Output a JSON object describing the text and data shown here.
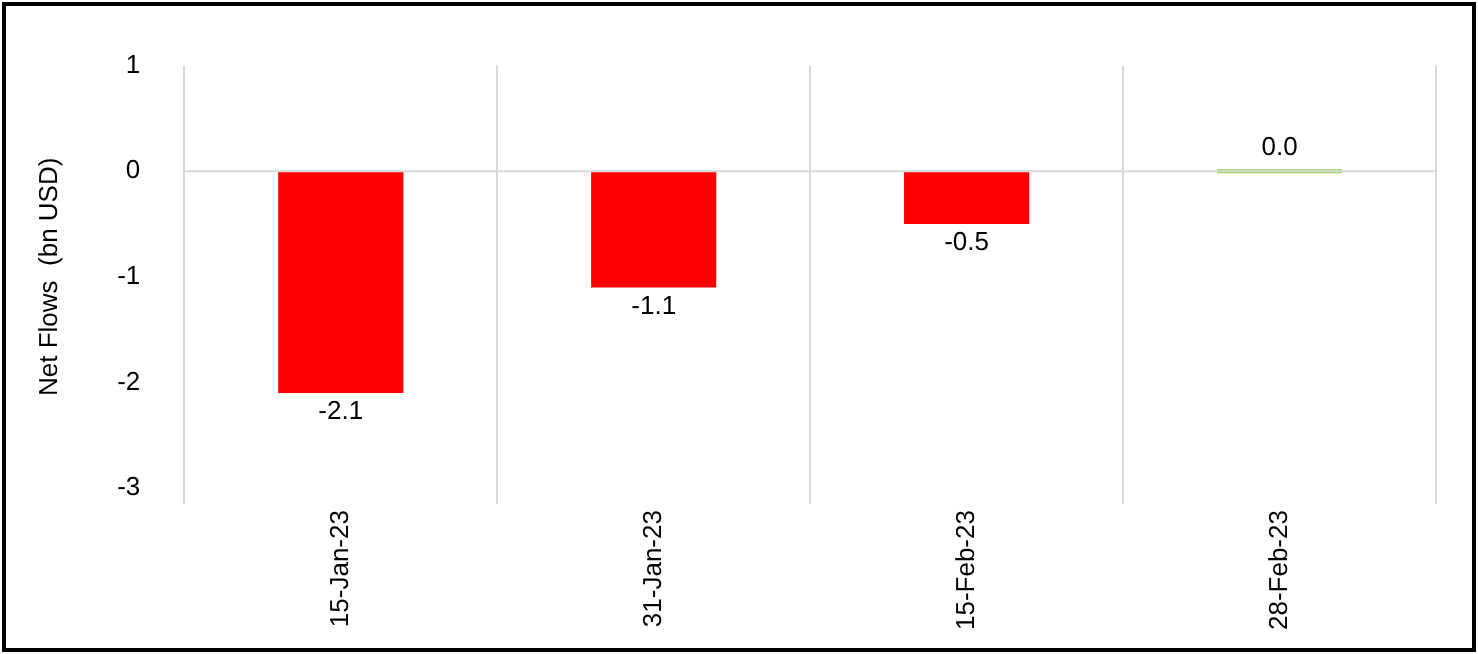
{
  "chart_data": {
    "type": "bar",
    "ylabel": "Net Flows  (bn USD)",
    "categories": [
      "15-Jan-23",
      "31-Jan-23",
      "15-Feb-23",
      "28-Feb-23"
    ],
    "values": [
      -2.1,
      -1.1,
      -0.5,
      0.0
    ],
    "value_labels": [
      "-2.1",
      "-1.1",
      "-0.5",
      "0.0"
    ],
    "ref_lines": [
      {
        "axis": "y",
        "value": 0,
        "color": "#d9d9d9"
      }
    ],
    "colors": [
      "#ff0000",
      "#ff0000",
      "#ff0000",
      "#92d050"
    ],
    "ylim": [
      -3,
      1
    ],
    "yticks": [
      -3,
      -2,
      -1,
      0,
      1
    ],
    "grid": "x",
    "legend": false
  }
}
